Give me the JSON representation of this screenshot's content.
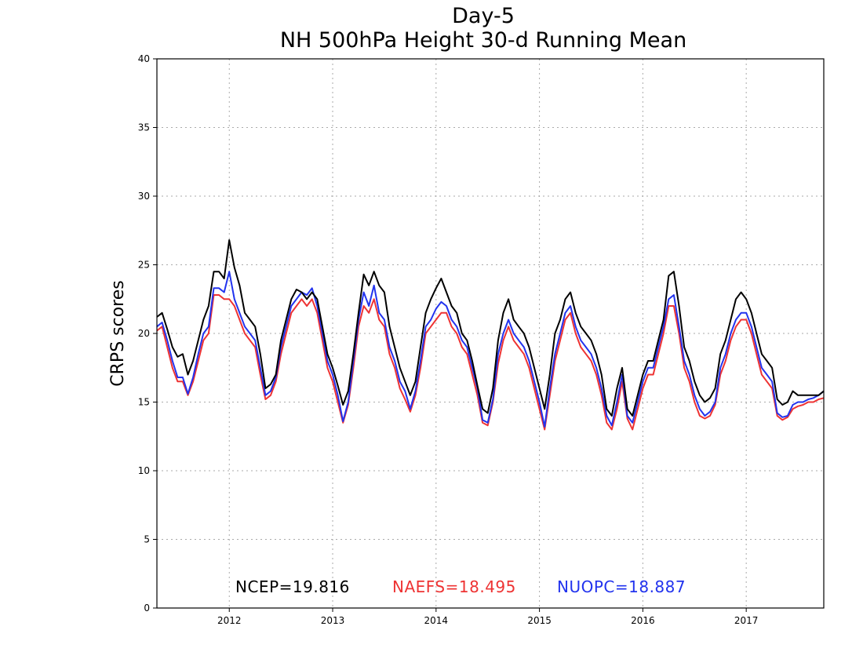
{
  "chart_data": {
    "type": "line",
    "title": "Day-5",
    "subtitle": "NH 500hPa Height 30-d Running Mean",
    "xlabel": "",
    "ylabel": "CRPS scores",
    "x_tick_labels": [
      "2012",
      "2013",
      "2014",
      "2015",
      "2016",
      "2017"
    ],
    "y_tick_labels": [
      "0",
      "5",
      "10",
      "15",
      "20",
      "25",
      "30",
      "35",
      "40"
    ],
    "xlim": [
      2011.3,
      2017.75
    ],
    "ylim": [
      0,
      40
    ],
    "grid": true,
    "legend_position": "bottom",
    "colors": {
      "NCEP": "#000000",
      "NAEFS": "#ee3333",
      "NUOPC": "#2233ee"
    },
    "series": [
      {
        "name": "NCEP",
        "legend_label": "NCEP=19.816",
        "x": [
          2011.3,
          2011.35,
          2011.4,
          2011.45,
          2011.5,
          2011.55,
          2011.6,
          2011.65,
          2011.7,
          2011.75,
          2011.8,
          2011.85,
          2011.9,
          2011.95,
          2012.0,
          2012.05,
          2012.1,
          2012.15,
          2012.2,
          2012.25,
          2012.3,
          2012.35,
          2012.4,
          2012.45,
          2012.5,
          2012.55,
          2012.6,
          2012.65,
          2012.7,
          2012.75,
          2012.8,
          2012.85,
          2012.9,
          2012.95,
          2013.0,
          2013.05,
          2013.1,
          2013.15,
          2013.2,
          2013.25,
          2013.3,
          2013.35,
          2013.4,
          2013.45,
          2013.5,
          2013.55,
          2013.6,
          2013.65,
          2013.7,
          2013.75,
          2013.8,
          2013.85,
          2013.9,
          2013.95,
          2014.0,
          2014.05,
          2014.1,
          2014.15,
          2014.2,
          2014.25,
          2014.3,
          2014.35,
          2014.4,
          2014.45,
          2014.5,
          2014.55,
          2014.6,
          2014.65,
          2014.7,
          2014.75,
          2014.8,
          2014.85,
          2014.9,
          2014.95,
          2015.0,
          2015.05,
          2015.1,
          2015.15,
          2015.2,
          2015.25,
          2015.3,
          2015.35,
          2015.4,
          2015.45,
          2015.5,
          2015.55,
          2015.6,
          2015.65,
          2015.7,
          2015.75,
          2015.8,
          2015.85,
          2015.9,
          2015.95,
          2016.0,
          2016.05,
          2016.1,
          2016.15,
          2016.2,
          2016.25,
          2016.3,
          2016.35,
          2016.4,
          2016.45,
          2016.5,
          2016.55,
          2016.6,
          2016.65,
          2016.7,
          2016.75,
          2016.8,
          2016.85,
          2016.9,
          2016.95,
          2017.0,
          2017.05,
          2017.1,
          2017.15,
          2017.2,
          2017.25,
          2017.3,
          2017.35,
          2017.4,
          2017.45,
          2017.5,
          2017.55,
          2017.6,
          2017.65,
          2017.7,
          2017.75
        ],
        "values": [
          21.2,
          21.5,
          20.3,
          19.0,
          18.3,
          18.5,
          17.0,
          18.0,
          19.5,
          21.0,
          22.0,
          24.5,
          24.5,
          24.0,
          26.8,
          24.8,
          23.5,
          21.5,
          21.0,
          20.5,
          18.5,
          16.0,
          16.3,
          17.0,
          19.5,
          21.0,
          22.5,
          23.2,
          23.0,
          22.5,
          23.0,
          22.5,
          20.5,
          18.5,
          17.5,
          16.2,
          14.8,
          15.8,
          18.5,
          21.5,
          24.3,
          23.5,
          24.5,
          23.5,
          23.0,
          20.5,
          19.0,
          17.5,
          16.5,
          15.5,
          16.5,
          19.0,
          21.5,
          22.5,
          23.3,
          24.0,
          23.0,
          22.0,
          21.5,
          20.0,
          19.5,
          18.0,
          16.2,
          14.5,
          14.2,
          16.0,
          19.5,
          21.5,
          22.5,
          21.0,
          20.5,
          20.0,
          19.0,
          17.5,
          16.0,
          14.5,
          17.0,
          20.0,
          21.0,
          22.5,
          23.0,
          21.5,
          20.5,
          20.0,
          19.5,
          18.5,
          17.0,
          14.5,
          14.0,
          16.0,
          17.5,
          14.5,
          14.0,
          15.5,
          17.0,
          18.0,
          18.0,
          19.5,
          21.0,
          24.2,
          24.5,
          22.0,
          19.0,
          18.0,
          16.5,
          15.5,
          15.0,
          15.3,
          16.0,
          18.5,
          19.5,
          21.0,
          22.5,
          23.0,
          22.5,
          21.5,
          20.0,
          18.5,
          18.0,
          17.5,
          15.2,
          14.8,
          15.0,
          15.8,
          15.5,
          15.5,
          15.5,
          15.5,
          15.5,
          15.8
        ]
      },
      {
        "name": "NAEFS",
        "legend_label": "NAEFS=18.495",
        "x": [
          2011.3,
          2011.35,
          2011.4,
          2011.45,
          2011.5,
          2011.55,
          2011.6,
          2011.65,
          2011.7,
          2011.75,
          2011.8,
          2011.85,
          2011.9,
          2011.95,
          2012.0,
          2012.05,
          2012.1,
          2012.15,
          2012.2,
          2012.25,
          2012.3,
          2012.35,
          2012.4,
          2012.45,
          2012.5,
          2012.55,
          2012.6,
          2012.65,
          2012.7,
          2012.75,
          2012.8,
          2012.85,
          2012.9,
          2012.95,
          2013.0,
          2013.05,
          2013.1,
          2013.15,
          2013.2,
          2013.25,
          2013.3,
          2013.35,
          2013.4,
          2013.45,
          2013.5,
          2013.55,
          2013.6,
          2013.65,
          2013.7,
          2013.75,
          2013.8,
          2013.85,
          2013.9,
          2013.95,
          2014.0,
          2014.05,
          2014.1,
          2014.15,
          2014.2,
          2014.25,
          2014.3,
          2014.35,
          2014.4,
          2014.45,
          2014.5,
          2014.55,
          2014.6,
          2014.65,
          2014.7,
          2014.75,
          2014.8,
          2014.85,
          2014.9,
          2014.95,
          2015.0,
          2015.05,
          2015.1,
          2015.15,
          2015.2,
          2015.25,
          2015.3,
          2015.35,
          2015.4,
          2015.45,
          2015.5,
          2015.55,
          2015.6,
          2015.65,
          2015.7,
          2015.75,
          2015.8,
          2015.85,
          2015.9,
          2015.95,
          2016.0,
          2016.05,
          2016.1,
          2016.15,
          2016.2,
          2016.25,
          2016.3,
          2016.35,
          2016.4,
          2016.45,
          2016.5,
          2016.55,
          2016.6,
          2016.65,
          2016.7,
          2016.75,
          2016.8,
          2016.85,
          2016.9,
          2016.95,
          2017.0,
          2017.05,
          2017.1,
          2017.15,
          2017.2,
          2017.25,
          2017.3,
          2017.35,
          2017.4,
          2017.45,
          2017.5,
          2017.55,
          2017.6,
          2017.65,
          2017.7,
          2017.75
        ],
        "values": [
          20.2,
          20.5,
          19.0,
          17.5,
          16.5,
          16.5,
          15.5,
          16.5,
          18.0,
          19.5,
          20.0,
          22.8,
          22.8,
          22.5,
          22.5,
          22.0,
          21.0,
          20.0,
          19.5,
          19.0,
          17.0,
          15.2,
          15.5,
          16.5,
          18.5,
          20.0,
          21.5,
          22.0,
          22.5,
          22.0,
          22.5,
          21.5,
          19.5,
          17.5,
          16.5,
          15.0,
          13.5,
          14.8,
          17.5,
          20.5,
          22.0,
          21.5,
          22.5,
          21.0,
          20.5,
          18.5,
          17.5,
          16.0,
          15.2,
          14.3,
          15.5,
          17.5,
          20.0,
          20.5,
          21.0,
          21.5,
          21.5,
          20.5,
          20.0,
          19.0,
          18.5,
          17.0,
          15.5,
          13.5,
          13.3,
          15.0,
          17.8,
          19.5,
          20.5,
          19.5,
          19.0,
          18.5,
          17.5,
          16.0,
          14.5,
          13.0,
          15.5,
          18.0,
          19.5,
          21.0,
          21.5,
          20.0,
          19.0,
          18.5,
          18.0,
          17.0,
          15.5,
          13.5,
          13.0,
          14.5,
          16.5,
          13.8,
          13.0,
          14.5,
          16.0,
          17.0,
          17.0,
          18.5,
          20.0,
          22.0,
          22.0,
          20.0,
          17.5,
          16.5,
          15.0,
          14.0,
          13.8,
          14.0,
          14.8,
          17.0,
          18.0,
          19.5,
          20.5,
          21.0,
          21.0,
          20.0,
          18.5,
          17.0,
          16.5,
          16.0,
          14.0,
          13.7,
          13.9,
          14.5,
          14.7,
          14.8,
          15.0,
          15.0,
          15.2,
          15.3
        ]
      },
      {
        "name": "NUOPC",
        "legend_label": "NUOPC=18.887",
        "x": [
          2011.3,
          2011.35,
          2011.4,
          2011.45,
          2011.5,
          2011.55,
          2011.6,
          2011.65,
          2011.7,
          2011.75,
          2011.8,
          2011.85,
          2011.9,
          2011.95,
          2012.0,
          2012.05,
          2012.1,
          2012.15,
          2012.2,
          2012.25,
          2012.3,
          2012.35,
          2012.4,
          2012.45,
          2012.5,
          2012.55,
          2012.6,
          2012.65,
          2012.7,
          2012.75,
          2012.8,
          2012.85,
          2012.9,
          2012.95,
          2013.0,
          2013.05,
          2013.1,
          2013.15,
          2013.2,
          2013.25,
          2013.3,
          2013.35,
          2013.4,
          2013.45,
          2013.5,
          2013.55,
          2013.6,
          2013.65,
          2013.7,
          2013.75,
          2013.8,
          2013.85,
          2013.9,
          2013.95,
          2014.0,
          2014.05,
          2014.1,
          2014.15,
          2014.2,
          2014.25,
          2014.3,
          2014.35,
          2014.4,
          2014.45,
          2014.5,
          2014.55,
          2014.6,
          2014.65,
          2014.7,
          2014.75,
          2014.8,
          2014.85,
          2014.9,
          2014.95,
          2015.0,
          2015.05,
          2015.1,
          2015.15,
          2015.2,
          2015.25,
          2015.3,
          2015.35,
          2015.4,
          2015.45,
          2015.5,
          2015.55,
          2015.6,
          2015.65,
          2015.7,
          2015.75,
          2015.8,
          2015.85,
          2015.9,
          2015.95,
          2016.0,
          2016.05,
          2016.1,
          2016.15,
          2016.2,
          2016.25,
          2016.3,
          2016.35,
          2016.4,
          2016.45,
          2016.5,
          2016.55,
          2016.6,
          2016.65,
          2016.7,
          2016.75,
          2016.8,
          2016.85,
          2016.9,
          2016.95,
          2017.0,
          2017.05,
          2017.1,
          2017.15,
          2017.2,
          2017.25,
          2017.3,
          2017.35,
          2017.4,
          2017.45,
          2017.5,
          2017.55,
          2017.6,
          2017.65,
          2017.7,
          2017.75
        ],
        "values": [
          20.5,
          20.8,
          19.5,
          18.0,
          16.8,
          16.8,
          15.6,
          16.8,
          18.5,
          20.0,
          20.5,
          23.3,
          23.3,
          23.0,
          24.5,
          22.5,
          21.5,
          20.5,
          20.0,
          19.5,
          17.5,
          15.5,
          15.8,
          16.8,
          19.0,
          20.5,
          22.0,
          22.5,
          23.0,
          22.8,
          23.3,
          22.0,
          20.0,
          18.0,
          17.0,
          15.5,
          13.6,
          15.0,
          18.0,
          21.0,
          23.0,
          22.0,
          23.5,
          21.5,
          21.0,
          19.0,
          18.0,
          16.5,
          15.8,
          14.5,
          15.8,
          18.0,
          20.5,
          21.0,
          21.8,
          22.3,
          22.0,
          21.0,
          20.5,
          19.5,
          19.0,
          17.5,
          16.0,
          13.7,
          13.5,
          15.2,
          18.5,
          20.0,
          21.0,
          20.0,
          19.5,
          19.0,
          18.0,
          16.5,
          15.0,
          13.2,
          16.0,
          18.5,
          20.0,
          21.5,
          22.0,
          20.5,
          19.5,
          19.0,
          18.5,
          17.5,
          16.0,
          14.0,
          13.3,
          15.0,
          17.0,
          14.0,
          13.5,
          15.0,
          16.5,
          17.5,
          17.5,
          19.0,
          20.5,
          22.5,
          22.8,
          20.5,
          18.0,
          17.0,
          15.5,
          14.5,
          14.0,
          14.3,
          15.0,
          17.5,
          18.5,
          20.0,
          21.0,
          21.5,
          21.5,
          20.5,
          19.0,
          17.5,
          17.0,
          16.5,
          14.2,
          13.9,
          14.0,
          14.8,
          15.0,
          15.0,
          15.2,
          15.3,
          15.5,
          15.8
        ]
      }
    ]
  }
}
